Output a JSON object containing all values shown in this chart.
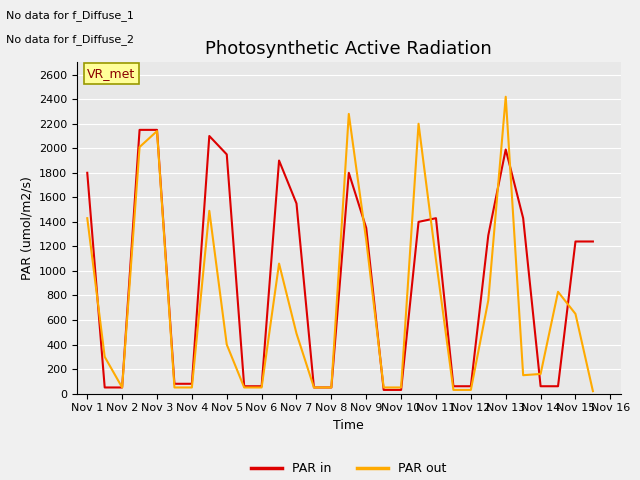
{
  "title": "Photosynthetic Active Radiation",
  "ylabel": "PAR (umol/m2/s)",
  "xlabel": "Time",
  "text_top_left_line1": "No data for f_Diffuse_1",
  "text_top_left_line2": "No data for f_Diffuse_2",
  "legend_box_label": "VR_met",
  "legend_entries": [
    "PAR in",
    "PAR out"
  ],
  "legend_colors": [
    "#dd0000",
    "#ffaa00"
  ],
  "ylim": [
    0,
    2700
  ],
  "yticks": [
    0,
    200,
    400,
    600,
    800,
    1000,
    1200,
    1400,
    1600,
    1800,
    2000,
    2200,
    2400,
    2600
  ],
  "xtick_labels": [
    "Nov 1",
    "Nov 2",
    "Nov 3",
    "Nov 4",
    "Nov 5",
    "Nov 6",
    "Nov 7",
    "Nov 8",
    "Nov 9",
    "Nov 10",
    "Nov 11",
    "Nov 12",
    "Nov 13",
    "Nov 14",
    "Nov 15",
    "Nov 16"
  ],
  "x_values": [
    1,
    1.5,
    2,
    2.5,
    3,
    3.5,
    4,
    4.5,
    5,
    5.5,
    6,
    6.5,
    7,
    7.5,
    8,
    8.5,
    9,
    9.5,
    10,
    10.5,
    11,
    11.5,
    12,
    12.5,
    13,
    13.5,
    14,
    14.5,
    15,
    15.5
  ],
  "par_in": [
    1800,
    50,
    50,
    2150,
    2150,
    80,
    80,
    2100,
    1950,
    60,
    60,
    1900,
    1550,
    50,
    50,
    1800,
    1350,
    30,
    30,
    1400,
    1430,
    60,
    60,
    1290,
    1990,
    1430,
    60,
    60,
    1240,
    1240
  ],
  "par_out": [
    1430,
    300,
    50,
    2010,
    2140,
    50,
    50,
    1490,
    400,
    50,
    50,
    1060,
    490,
    50,
    50,
    2280,
    1250,
    50,
    50,
    2200,
    1090,
    30,
    30,
    760,
    2420,
    150,
    160,
    830,
    650,
    20
  ],
  "bg_color": "#e8e8e8",
  "fig_bg_color": "#f0f0f0",
  "grid_color": "#ffffff",
  "line_width": 1.5,
  "title_fontsize": 13,
  "label_fontsize": 9,
  "tick_fontsize": 8
}
